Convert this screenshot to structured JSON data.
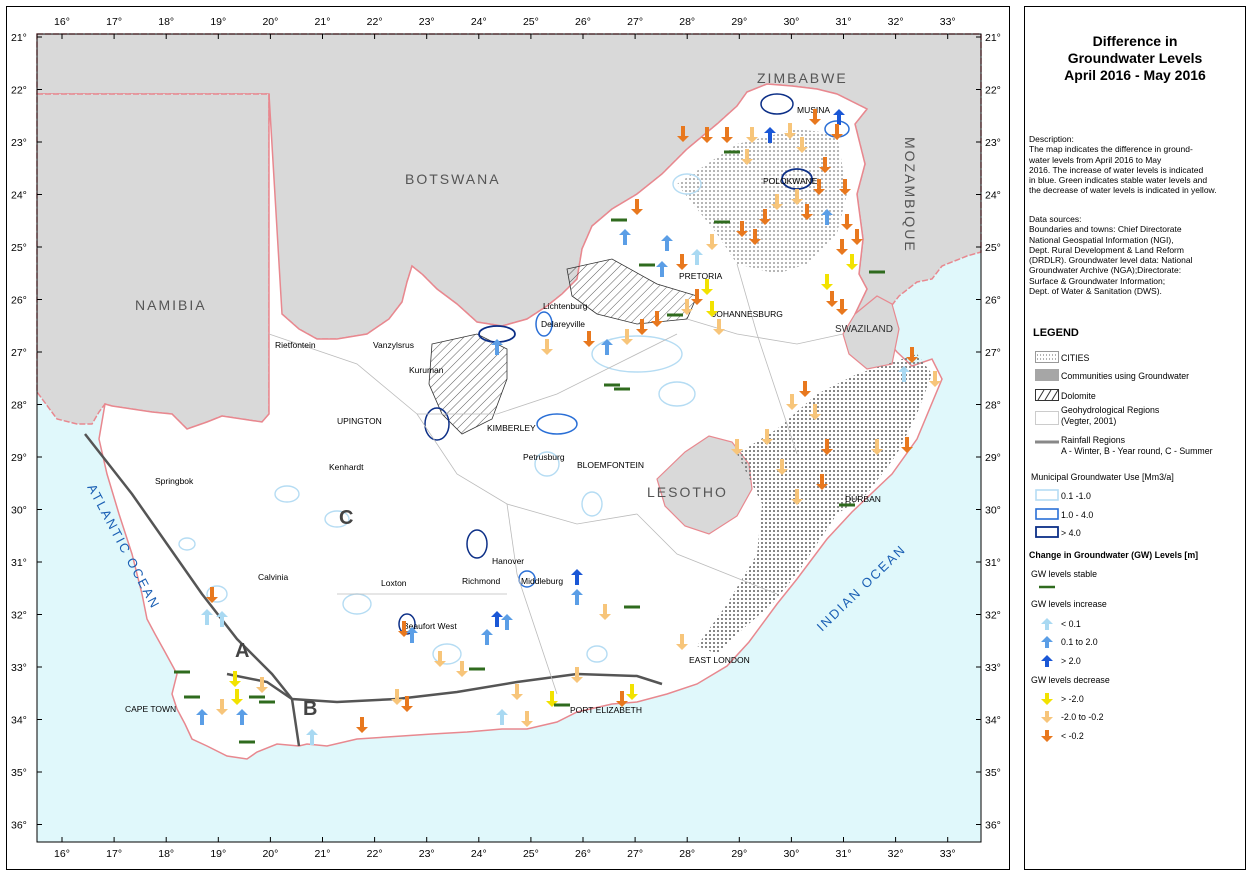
{
  "title_lines": [
    "Difference in",
    "Groundwater Levels",
    "April 2016 - May 2016"
  ],
  "description_lines": [
    "Description:",
    "The map indicates the difference in ground-",
    "water levels from April 2016 to May",
    "2016. The increase of water levels is indicated",
    "in blue. Green indicates stable water levels and",
    "the decrease of water levels is indicated in yellow."
  ],
  "sources_lines": [
    "Data sources:",
    "Boundaries and towns: Chief Directorate",
    "National Geospatial Information (NGI),",
    "Dept. Rural Development & Land Reform",
    "(DRDLR). Groundwater level data: National",
    "Groundwater Archive (NGA);Directorate:",
    "Surface & Groundwater Information;",
    "Dept. of Water & Sanitation (DWS)."
  ],
  "legend": {
    "heading": "LEGEND",
    "cities": "CITIES",
    "communities": "Communities using Groundwater",
    "dolomite": "Dolomite",
    "geohydro_1": "Geohydrological Regions",
    "geohydro_2": "(Vegter, 2001)",
    "rainfall_1": "Rainfall Regions",
    "rainfall_2": "A - Winter, B - Year round, C - Summer",
    "municipal_heading": "Municipal Groundwater Use [Mm3/a]",
    "municipal": [
      "0.1 -1.0",
      "1.0 - 4.0",
      "> 4.0"
    ],
    "change_heading": "Change in Groundwater (GW) Levels [m]",
    "stable_heading": "GW levels stable",
    "increase_heading": "GW levels increase",
    "increase": [
      "< 0.1",
      "0.1 to 2.0",
      "> 2.0"
    ],
    "decrease_heading": "GW levels decrease",
    "decrease": [
      "> -2.0",
      "-2.0 to -0.2",
      "< -0.2"
    ]
  },
  "colors": {
    "ocean": "#e0f8fb",
    "neighbour": "#d9d9d9",
    "land": "#ffffff",
    "border": "#e8888f",
    "stable": "#2f6b1e",
    "inc_small": "#a9d9f2",
    "inc_mid": "#5b9ee6",
    "inc_large": "#1a57d6",
    "dec_small": "#f2e200",
    "dec_mid": "#f7c57a",
    "dec_large": "#e8781e",
    "muni_light": "#b5dcf3",
    "muni_mid": "#2a6fd6",
    "muni_dark": "#0c2f87"
  },
  "map": {
    "lon_labels": [
      "16°",
      "17°",
      "18°",
      "19°",
      "20°",
      "21°",
      "22°",
      "23°",
      "24°",
      "25°",
      "26°",
      "27°",
      "28°",
      "29°",
      "30°",
      "31°",
      "32°",
      "33°"
    ],
    "lat_labels": [
      "21°",
      "22°",
      "23°",
      "24°",
      "25°",
      "26°",
      "27°",
      "28°",
      "29°",
      "30°",
      "31°",
      "32°",
      "33°",
      "34°",
      "35°",
      "36°"
    ],
    "countries": [
      "ZIMBABWE",
      "BOTSWANA",
      "NAMIBIA",
      "MOZAMBIQUE",
      "SWAZILAND",
      "LESOTHO"
    ],
    "oceans": [
      "ATLANTIC OCEAN",
      "INDIAN OCEAN"
    ],
    "regions": [
      "A",
      "B",
      "C"
    ],
    "cities": [
      "MUSINA",
      "POLOKWANE",
      "PRETORIA",
      "JOHANNESBURG",
      "Lichtenburg",
      "Delareyville",
      "Rietfontein",
      "Vanzylsrus",
      "Kuruman",
      "UPINGTON",
      "KIMBERLEY",
      "Petrusburg",
      "BLOEMFONTEIN",
      "Kenhardt",
      "Springbok",
      "Hanover",
      "Richmond",
      "Middleburg",
      "Calvinia",
      "Loxton",
      "Beaufort West",
      "CAPE TOWN",
      "PORT ELIZABETH",
      "EAST LONDON",
      "DURBAN"
    ]
  }
}
